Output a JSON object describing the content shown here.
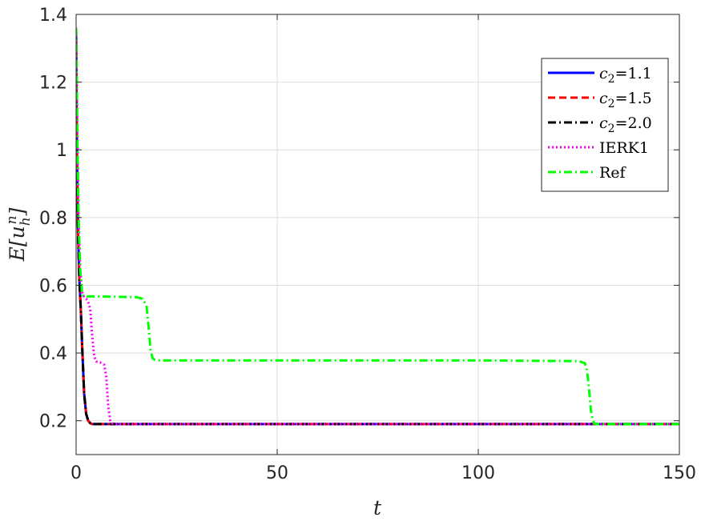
{
  "chart_data": {
    "type": "line",
    "xlabel": "t",
    "ylabel": "E[u_h^n]",
    "ylabel_parts": {
      "base": "E[u",
      "sub": "h",
      "sup": "n",
      "close": "]"
    },
    "xlim": [
      0,
      150
    ],
    "ylim": [
      0.1,
      1.4
    ],
    "xticks": [
      0,
      50,
      100,
      150
    ],
    "xtick_labels": [
      "0",
      "50",
      "100",
      "150"
    ],
    "yticks": [
      0.2,
      0.4,
      0.6,
      0.8,
      1.0,
      1.2,
      1.4
    ],
    "ytick_labels": [
      "0.2",
      "0.4",
      "0.6",
      "0.8",
      "1",
      "1.2",
      "1.4"
    ],
    "grid": true,
    "legend_position": "top-right",
    "series": [
      {
        "name": "c2=1.1",
        "legend_parts": {
          "sym": "c",
          "sub": "2",
          "rest": "=1.1"
        },
        "color": "#0000ff",
        "style": "solid",
        "x": [
          0,
          0.2,
          0.5,
          0.8,
          1.0,
          1.2,
          1.5,
          2.0,
          2.5,
          3.0,
          3.5,
          4.0,
          5.0,
          6.0,
          150
        ],
        "y": [
          1.36,
          1.0,
          0.75,
          0.62,
          0.57,
          0.52,
          0.42,
          0.28,
          0.22,
          0.2,
          0.193,
          0.19,
          0.19,
          0.19,
          0.19
        ]
      },
      {
        "name": "c2=1.5",
        "legend_parts": {
          "sym": "c",
          "sub": "2",
          "rest": "=1.5"
        },
        "color": "#ff0000",
        "style": "dashed",
        "x": [
          0,
          0.2,
          0.5,
          0.8,
          1.0,
          1.2,
          1.5,
          2.0,
          2.5,
          3.0,
          3.5,
          4.0,
          5.0,
          6.0,
          150
        ],
        "y": [
          1.36,
          1.0,
          0.75,
          0.62,
          0.57,
          0.52,
          0.42,
          0.28,
          0.22,
          0.2,
          0.193,
          0.19,
          0.19,
          0.19,
          0.19
        ]
      },
      {
        "name": "c2=2.0",
        "legend_parts": {
          "sym": "c",
          "sub": "2",
          "rest": "=2.0"
        },
        "color": "#000000",
        "style": "dashdot",
        "x": [
          0,
          0.2,
          0.5,
          0.8,
          1.0,
          1.2,
          1.5,
          2.0,
          2.5,
          3.0,
          3.5,
          4.0,
          5.0,
          6.0,
          150
        ],
        "y": [
          1.36,
          1.0,
          0.75,
          0.62,
          0.57,
          0.52,
          0.42,
          0.28,
          0.22,
          0.2,
          0.193,
          0.19,
          0.19,
          0.19,
          0.19
        ]
      },
      {
        "name": "IERK1",
        "legend_parts": {
          "sym": "",
          "sub": "",
          "rest": "IERK1"
        },
        "color": "#ff00ff",
        "style": "dotted",
        "x": [
          0,
          0.3,
          0.6,
          1.0,
          1.5,
          2.0,
          2.5,
          3.0,
          3.5,
          4.0,
          4.5,
          5.0,
          6.0,
          7.0,
          7.5,
          8.0,
          8.5,
          9.0,
          10.0,
          150
        ],
        "y": [
          1.36,
          1.05,
          0.8,
          0.65,
          0.58,
          0.565,
          0.56,
          0.55,
          0.53,
          0.45,
          0.39,
          0.375,
          0.372,
          0.365,
          0.33,
          0.24,
          0.2,
          0.192,
          0.19,
          0.19
        ]
      },
      {
        "name": "Ref",
        "legend_parts": {
          "sym": "",
          "sub": "",
          "rest": "Ref"
        },
        "color": "#00ff00",
        "style": "dashdot",
        "x": [
          0,
          0.3,
          0.6,
          1.0,
          1.5,
          2.0,
          5.0,
          10.0,
          15.0,
          16.5,
          17.5,
          18.0,
          18.5,
          19.0,
          19.5,
          20.0,
          25.0,
          60.0,
          100.0,
          125.0,
          126.5,
          127.0,
          127.5,
          128.0,
          128.5,
          129.0,
          150.0
        ],
        "y": [
          1.36,
          1.05,
          0.8,
          0.65,
          0.572,
          0.567,
          0.567,
          0.566,
          0.565,
          0.56,
          0.54,
          0.48,
          0.41,
          0.385,
          0.38,
          0.378,
          0.378,
          0.378,
          0.378,
          0.376,
          0.37,
          0.35,
          0.3,
          0.23,
          0.2,
          0.19,
          0.19
        ]
      }
    ]
  }
}
